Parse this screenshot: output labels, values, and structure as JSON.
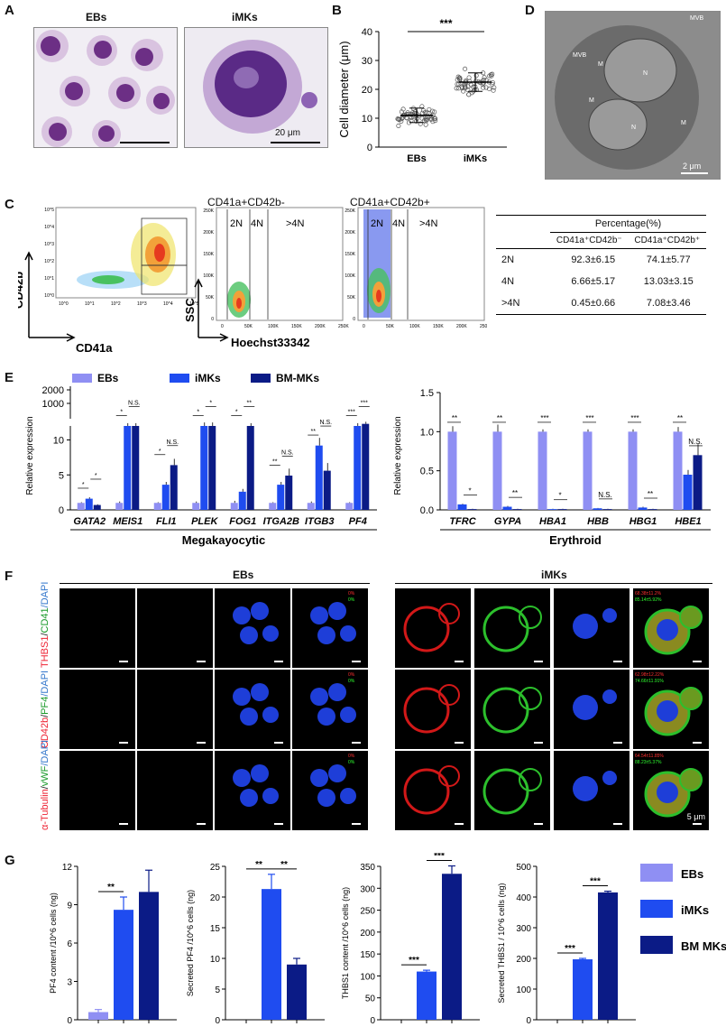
{
  "panels": {
    "A": "A",
    "B": "B",
    "C": "C",
    "D": "D",
    "E": "E",
    "F": "F",
    "G": "G"
  },
  "panelA": {
    "left_title": "EBs",
    "right_title": "iMKs",
    "scale": "20 μm"
  },
  "panelB": {
    "ylabel": "Cell diameter (μm)",
    "sig": "***"
  },
  "panelD": {
    "labels": [
      "N",
      "M",
      "MVB",
      "M",
      "N",
      "M",
      "MVB"
    ],
    "scale": "2 μm"
  },
  "panelC": {
    "xlabel": "CD41a",
    "ylabel": "CD42b",
    "hist_xlabel": "Hoechst33342",
    "hist_ylabel": "SSC",
    "plot2_title": "CD41a+CD42b-",
    "plot3_title": "CD41a+CD42b+",
    "gates": [
      "2N",
      "4N",
      ">4N"
    ],
    "ytick_labels": [
      "250K",
      "200K",
      "150K",
      "100K",
      "50K",
      "0"
    ],
    "xtick_labels": [
      "0",
      "50K",
      "100K",
      "150K",
      "200K",
      "250K"
    ],
    "log_ticks": [
      "10^5",
      "10^4",
      "10^3",
      "10^2",
      "10^1",
      "10^0"
    ],
    "table": {
      "header": "Percentage(%)",
      "col1": "CD41a⁺CD42b⁻",
      "col2": "CD41a⁺CD42b⁺",
      "rows": [
        {
          "ploidy": "2N",
          "a": "92.3±6.15",
          "b": "74.1±5.77"
        },
        {
          "ploidy": "4N",
          "a": "6.66±5.17",
          "b": "13.03±3.15"
        },
        {
          "ploidy": ">4N",
          "a": "0.45±0.66",
          "b": "7.08±3.46"
        }
      ]
    }
  },
  "panelE": {
    "legend": [
      "EBs",
      "iMKs",
      "BM-MKs"
    ],
    "ylabel": "Relative expression",
    "left_group": "Megakayocytic",
    "right_group": "Erythroid"
  },
  "panelF": {
    "left_title": "EBs",
    "right_title": "iMKs",
    "row_labels": [
      {
        "a": "THBS1",
        "b": "CD41",
        "c": "/DAPI"
      },
      {
        "a": "CD42b",
        "b": "PF4",
        "c": "/DAPI"
      },
      {
        "a": "α-Tubulin",
        "b": "vWF",
        "c": "/DAPI"
      }
    ],
    "ebs_pcts": [
      [
        "0%",
        "0%"
      ],
      [
        "0%",
        "0%"
      ],
      [
        "0%",
        "0%"
      ]
    ],
    "imk_pcts": [
      [
        "68.38±11.2%",
        "85.14±5.92%"
      ],
      [
        "62.98±12.22%",
        "74.66±11.91%"
      ],
      [
        "64.54±11.85%",
        "88.23±5.37%"
      ]
    ],
    "scale": "5 μm"
  },
  "panelG": {
    "legend": [
      "EBs",
      "iMKs",
      "BM MKs"
    ],
    "colors": {
      "EBs": "#8f8ff3",
      "iMKs": "#1f4cf0",
      "BM": "#0b1b86"
    }
  },
  "chart_data": [
    {
      "type": "scatter",
      "panel": "B",
      "categories": [
        "EBs",
        "iMKs"
      ],
      "means": [
        11,
        22.5
      ],
      "sd": [
        2.5,
        3.2
      ],
      "ylabel": "Cell diameter (μm)",
      "ylim": [
        0,
        40
      ],
      "yticks": [
        0,
        10,
        20,
        30,
        40
      ],
      "significance": "***"
    },
    {
      "type": "bar",
      "panel": "E-left",
      "categories": [
        "GATA2",
        "MEIS1",
        "FLI1",
        "PLEK",
        "FOG1",
        "ITGA2B",
        "ITGB3",
        "PF4"
      ],
      "series": [
        {
          "name": "EBs",
          "values": [
            1,
            1,
            1,
            1,
            1,
            1,
            1,
            1
          ],
          "err": [
            0.1,
            0.2,
            0.1,
            0.2,
            0.3,
            0.1,
            0.2,
            0.1
          ]
        },
        {
          "name": "iMKs",
          "values": [
            1.6,
            12,
            3.6,
            12,
            2.6,
            3.6,
            9.2,
            12
          ],
          "err": [
            0.2,
            0.4,
            0.4,
            0.5,
            0.4,
            0.4,
            1.1,
            0.4
          ]
        },
        {
          "name": "BM-MKs",
          "values": [
            0.7,
            12,
            6.4,
            12,
            12,
            4.9,
            5.6,
            13
          ],
          "err": [
            0.1,
            0.4,
            0.9,
            0.5,
            0.4,
            1.0,
            1.1,
            0.3
          ]
        }
      ],
      "ylabel": "Relative expression",
      "yticks_low": [
        "0",
        "5",
        "10"
      ],
      "yticks_high": [
        "1000",
        "2000"
      ],
      "significance": [
        [
          "*",
          "*"
        ],
        [
          "*",
          "N.S."
        ],
        [
          "*",
          "N.S."
        ],
        [
          "*",
          "*"
        ],
        [
          "*",
          "**"
        ],
        [
          "**",
          "N.S."
        ],
        [
          "**",
          "N.S."
        ],
        [
          "***",
          "***"
        ]
      ],
      "group_label": "Megakayocytic"
    },
    {
      "type": "bar",
      "panel": "E-right",
      "categories": [
        "TFRC",
        "GYPA",
        "HBA1",
        "HBB",
        "HBG1",
        "HBE1"
      ],
      "series": [
        {
          "name": "EBs",
          "values": [
            1,
            1,
            1,
            1,
            1,
            1
          ],
          "err": [
            0.07,
            0.09,
            0.03,
            0.03,
            0.03,
            0.06
          ]
        },
        {
          "name": "iMKs",
          "values": [
            0.07,
            0.04,
            0.01,
            0.02,
            0.03,
            0.45
          ],
          "err": [
            0.01,
            0.01,
            0.005,
            0.005,
            0.01,
            0.06
          ]
        },
        {
          "name": "BM-MKs",
          "values": [
            0.01,
            0.01,
            0.01,
            0.01,
            0.01,
            0.7
          ],
          "err": [
            0.005,
            0.005,
            0.005,
            0.005,
            0.005,
            0.14
          ]
        }
      ],
      "ylabel": "Relative expression",
      "ylim": [
        0,
        1.5
      ],
      "yticks": [
        0.0,
        0.5,
        1.0,
        1.5
      ],
      "significance": [
        [
          "**",
          "*"
        ],
        [
          "**",
          "**"
        ],
        [
          "***",
          "*"
        ],
        [
          "***",
          "N.S."
        ],
        [
          "***",
          "**"
        ],
        [
          "**",
          "N.S."
        ]
      ],
      "group_label": "Erythroid"
    },
    {
      "type": "bar",
      "panel": "G1",
      "ylabel": "PF4 content /10^6 cells (ng)",
      "categories": [
        "EBs",
        "iMKs",
        "BM MKs"
      ],
      "values": [
        0.6,
        8.6,
        10
      ],
      "err": [
        0.2,
        1.0,
        1.7
      ],
      "ylim": [
        0,
        12
      ],
      "yticks": [
        0,
        3,
        6,
        9,
        12
      ],
      "significance": [
        {
          "from": 0,
          "to": 1,
          "label": "**"
        }
      ]
    },
    {
      "type": "bar",
      "panel": "G2",
      "ylabel": "Secreted PF4 /10^6 cells (ng)",
      "categories": [
        "EBs",
        "iMKs",
        "BM MKs"
      ],
      "values": [
        0,
        21.3,
        9
      ],
      "err": [
        0,
        2.4,
        1.0
      ],
      "ylim": [
        0,
        25
      ],
      "yticks": [
        0,
        5,
        10,
        15,
        20,
        25
      ],
      "significance": [
        {
          "from": 0,
          "to": 1,
          "label": "**"
        },
        {
          "from": 1,
          "to": 2,
          "label": "**"
        }
      ]
    },
    {
      "type": "bar",
      "panel": "G3",
      "ylabel": "THBS1 content /10^6 cells (ng)",
      "categories": [
        "EBs",
        "iMKs",
        "BM MKs"
      ],
      "values": [
        0,
        110,
        333
      ],
      "err": [
        0,
        3,
        18
      ],
      "ylim": [
        0,
        350
      ],
      "yticks": [
        0,
        50,
        100,
        150,
        200,
        250,
        300,
        350
      ],
      "significance": [
        {
          "from": 0,
          "to": 1,
          "label": "***"
        },
        {
          "from": 1,
          "to": 2,
          "label": "***"
        }
      ]
    },
    {
      "type": "bar",
      "panel": "G4",
      "ylabel": "Secreted THBS1 / 10^6 cells (ng)",
      "categories": [
        "EBs",
        "iMKs",
        "BM MKs"
      ],
      "values": [
        0,
        197,
        415
      ],
      "err": [
        0,
        3,
        4
      ],
      "ylim": [
        0,
        500
      ],
      "yticks": [
        0,
        100,
        200,
        300,
        400,
        500
      ],
      "significance": [
        {
          "from": 0,
          "to": 1,
          "label": "***"
        },
        {
          "from": 1,
          "to": 2,
          "label": "***"
        }
      ]
    }
  ]
}
